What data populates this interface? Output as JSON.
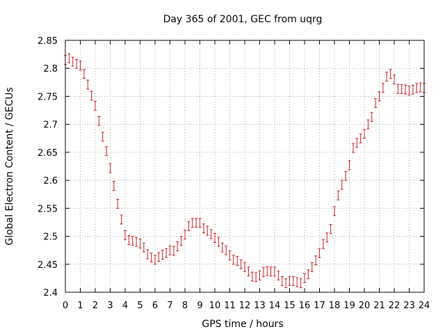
{
  "chart_data": {
    "type": "scatter",
    "title": "Day 365 of 2001, GEC from uqrg",
    "xlabel": "GPS time / hours",
    "ylabel": "Global Electron Content / GECUs",
    "xlim": [
      0,
      24
    ],
    "ylim": [
      2.4,
      2.85
    ],
    "x_ticks": [
      0,
      1,
      2,
      3,
      4,
      5,
      6,
      7,
      8,
      9,
      10,
      11,
      12,
      13,
      14,
      15,
      16,
      17,
      18,
      19,
      20,
      21,
      22,
      23,
      24
    ],
    "y_ticks": [
      2.4,
      2.45,
      2.5,
      2.55,
      2.6,
      2.65,
      2.7,
      2.75,
      2.8,
      2.85
    ],
    "y_tick_labels": [
      "2.4",
      "2.45",
      "2.5",
      "2.55",
      "2.6",
      "2.65",
      "2.7",
      "2.75",
      "2.8",
      "2.85"
    ],
    "grid": true,
    "error_half_width": 0.008,
    "series_color": "#cc1a1a",
    "series": [
      {
        "x": [
          0,
          0.25,
          0.5,
          0.75,
          1,
          1.25,
          1.5,
          1.75,
          2,
          2.25,
          2.5,
          2.75,
          3,
          3.25,
          3.5,
          3.75,
          4,
          4.25,
          4.5,
          4.75,
          5,
          5.25,
          5.5,
          5.75,
          6,
          6.25,
          6.5,
          6.75,
          7,
          7.25,
          7.5,
          7.75,
          8,
          8.25,
          8.5,
          8.75,
          9,
          9.25,
          9.5,
          9.75,
          10,
          10.25,
          10.5,
          10.75,
          11,
          11.25,
          11.5,
          11.75,
          12,
          12.25,
          12.5,
          12.75,
          13,
          13.25,
          13.5,
          13.75,
          14,
          14.25,
          14.5,
          14.75,
          15,
          15.25,
          15.5,
          15.75,
          16,
          16.25,
          16.5,
          16.75,
          17,
          17.25,
          17.5,
          17.75,
          18,
          18.25,
          18.5,
          18.75,
          19,
          19.25,
          19.5,
          19.75,
          20,
          20.25,
          20.5,
          20.75,
          21,
          21.25,
          21.5,
          21.75,
          22,
          22.25,
          22.5,
          22.75,
          23,
          23.25,
          23.5,
          23.75,
          24
        ],
        "y": [
          2.815,
          2.818,
          2.812,
          2.808,
          2.805,
          2.79,
          2.771,
          2.751,
          2.733,
          2.706,
          2.678,
          2.652,
          2.622,
          2.59,
          2.558,
          2.53,
          2.502,
          2.493,
          2.492,
          2.49,
          2.487,
          2.48,
          2.468,
          2.462,
          2.458,
          2.463,
          2.467,
          2.47,
          2.475,
          2.474,
          2.482,
          2.492,
          2.503,
          2.518,
          2.524,
          2.524,
          2.524,
          2.514,
          2.51,
          2.504,
          2.497,
          2.49,
          2.48,
          2.475,
          2.466,
          2.458,
          2.456,
          2.45,
          2.445,
          2.437,
          2.428,
          2.427,
          2.43,
          2.436,
          2.438,
          2.437,
          2.437,
          2.43,
          2.42,
          2.416,
          2.42,
          2.42,
          2.418,
          2.416,
          2.425,
          2.432,
          2.445,
          2.457,
          2.47,
          2.486,
          2.498,
          2.513,
          2.545,
          2.573,
          2.592,
          2.608,
          2.627,
          2.658,
          2.667,
          2.675,
          2.683,
          2.7,
          2.713,
          2.738,
          2.75,
          2.765,
          2.785,
          2.79,
          2.78,
          2.763,
          2.763,
          2.762,
          2.76,
          2.762,
          2.765,
          2.766,
          2.765
        ]
      }
    ]
  }
}
